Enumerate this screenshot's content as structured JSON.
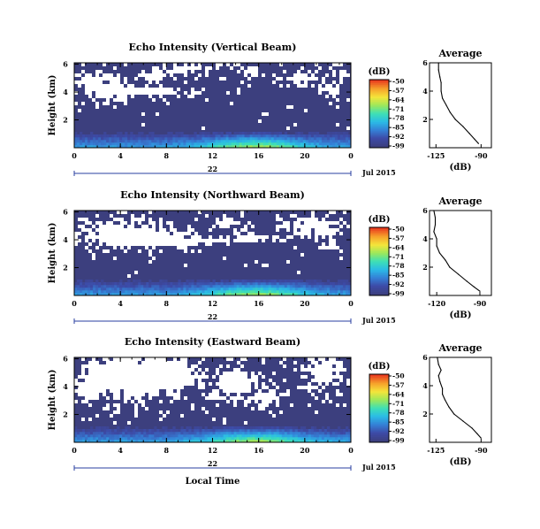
{
  "chart_data": {
    "type": "heatmap",
    "colorbar": {
      "unit": "(dB)",
      "ticks": [
        "-50",
        "-57",
        "-64",
        "-71",
        "-78",
        "-85",
        "-92",
        "-99"
      ],
      "range": [
        -99,
        -50
      ],
      "colors": [
        "#3c3f7e",
        "#3d4aa6",
        "#3580d6",
        "#2bbbe6",
        "#3ee0b5",
        "#9ee85a",
        "#f5e53a",
        "#f6a02b",
        "#e83a1f"
      ]
    },
    "missing_color": "#ffffff",
    "panels": [
      {
        "title": "Echo Intensity (Vertical Beam)",
        "ylabel": "Height (km)",
        "yticks": [
          "6",
          "4",
          "2"
        ],
        "xticks": [
          "0",
          "4",
          "8",
          "12",
          "16",
          "20",
          "0"
        ],
        "date_day": "22",
        "date_label": "Jul 2015",
        "xlabel": "",
        "profile": {
          "title": "Average",
          "xlabel": "(dB)",
          "xticks": [
            "-125",
            "-90"
          ],
          "xlim": [
            -130,
            -82
          ],
          "yticks": [
            "6",
            "4",
            "2"
          ],
          "ylim": [
            0,
            6
          ],
          "points": [
            [
              -123,
              6.0
            ],
            [
              -123,
              5.5
            ],
            [
              -122,
              5.0
            ],
            [
              -121,
              4.6
            ],
            [
              -121,
              4.0
            ],
            [
              -120,
              3.5
            ],
            [
              -117,
              3.0
            ],
            [
              -114,
              2.5
            ],
            [
              -110,
              2.0
            ],
            [
              -104,
              1.5
            ],
            [
              -99,
              1.0
            ],
            [
              -95,
              0.6
            ],
            [
              -92,
              0.3
            ]
          ]
        }
      },
      {
        "title": "Echo Intensity (Northward Beam)",
        "ylabel": "Height (km)",
        "yticks": [
          "6",
          "4",
          "2"
        ],
        "xticks": [
          "0",
          "4",
          "8",
          "12",
          "16",
          "20",
          "0"
        ],
        "date_day": "22",
        "date_label": "Jul 2015",
        "xlabel": "",
        "profile": {
          "title": "Average",
          "xlabel": "(dB)",
          "xticks": [
            "-120",
            "-90"
          ],
          "xlim": [
            -125,
            -82
          ],
          "yticks": [
            "6",
            "4",
            "2"
          ],
          "ylim": [
            0,
            6
          ],
          "points": [
            [
              -122,
              6.0
            ],
            [
              -121,
              5.5
            ],
            [
              -121,
              5.0
            ],
            [
              -122,
              4.5
            ],
            [
              -120,
              4.0
            ],
            [
              -120,
              3.5
            ],
            [
              -118,
              3.0
            ],
            [
              -114,
              2.5
            ],
            [
              -111,
              2.0
            ],
            [
              -105,
              1.5
            ],
            [
              -99,
              1.0
            ],
            [
              -94,
              0.6
            ],
            [
              -90,
              0.3
            ]
          ]
        }
      },
      {
        "title": "Echo Intensity (Eastward Beam)",
        "ylabel": "Height (km)",
        "yticks": [
          "6",
          "4",
          "2"
        ],
        "xticks": [
          "0",
          "4",
          "8",
          "12",
          "16",
          "20",
          "0"
        ],
        "date_day": "22",
        "date_label": "Jul 2015",
        "xlabel": "Local Time",
        "profile": {
          "title": "Average",
          "xlabel": "(dB)",
          "xticks": [
            "-125",
            "-90"
          ],
          "xlim": [
            -130,
            -82
          ],
          "yticks": [
            "6",
            "4",
            "2"
          ],
          "ylim": [
            0,
            6
          ],
          "points": [
            [
              -124,
              6.0
            ],
            [
              -123,
              5.5
            ],
            [
              -121,
              5.1
            ],
            [
              -123,
              4.7
            ],
            [
              -122,
              4.3
            ],
            [
              -120,
              3.8
            ],
            [
              -120,
              3.4
            ],
            [
              -118,
              3.0
            ],
            [
              -115,
              2.5
            ],
            [
              -111,
              2.0
            ],
            [
              -104,
              1.5
            ],
            [
              -97,
              1.0
            ],
            [
              -93,
              0.6
            ],
            [
              -90,
              0.3
            ]
          ]
        }
      }
    ]
  }
}
